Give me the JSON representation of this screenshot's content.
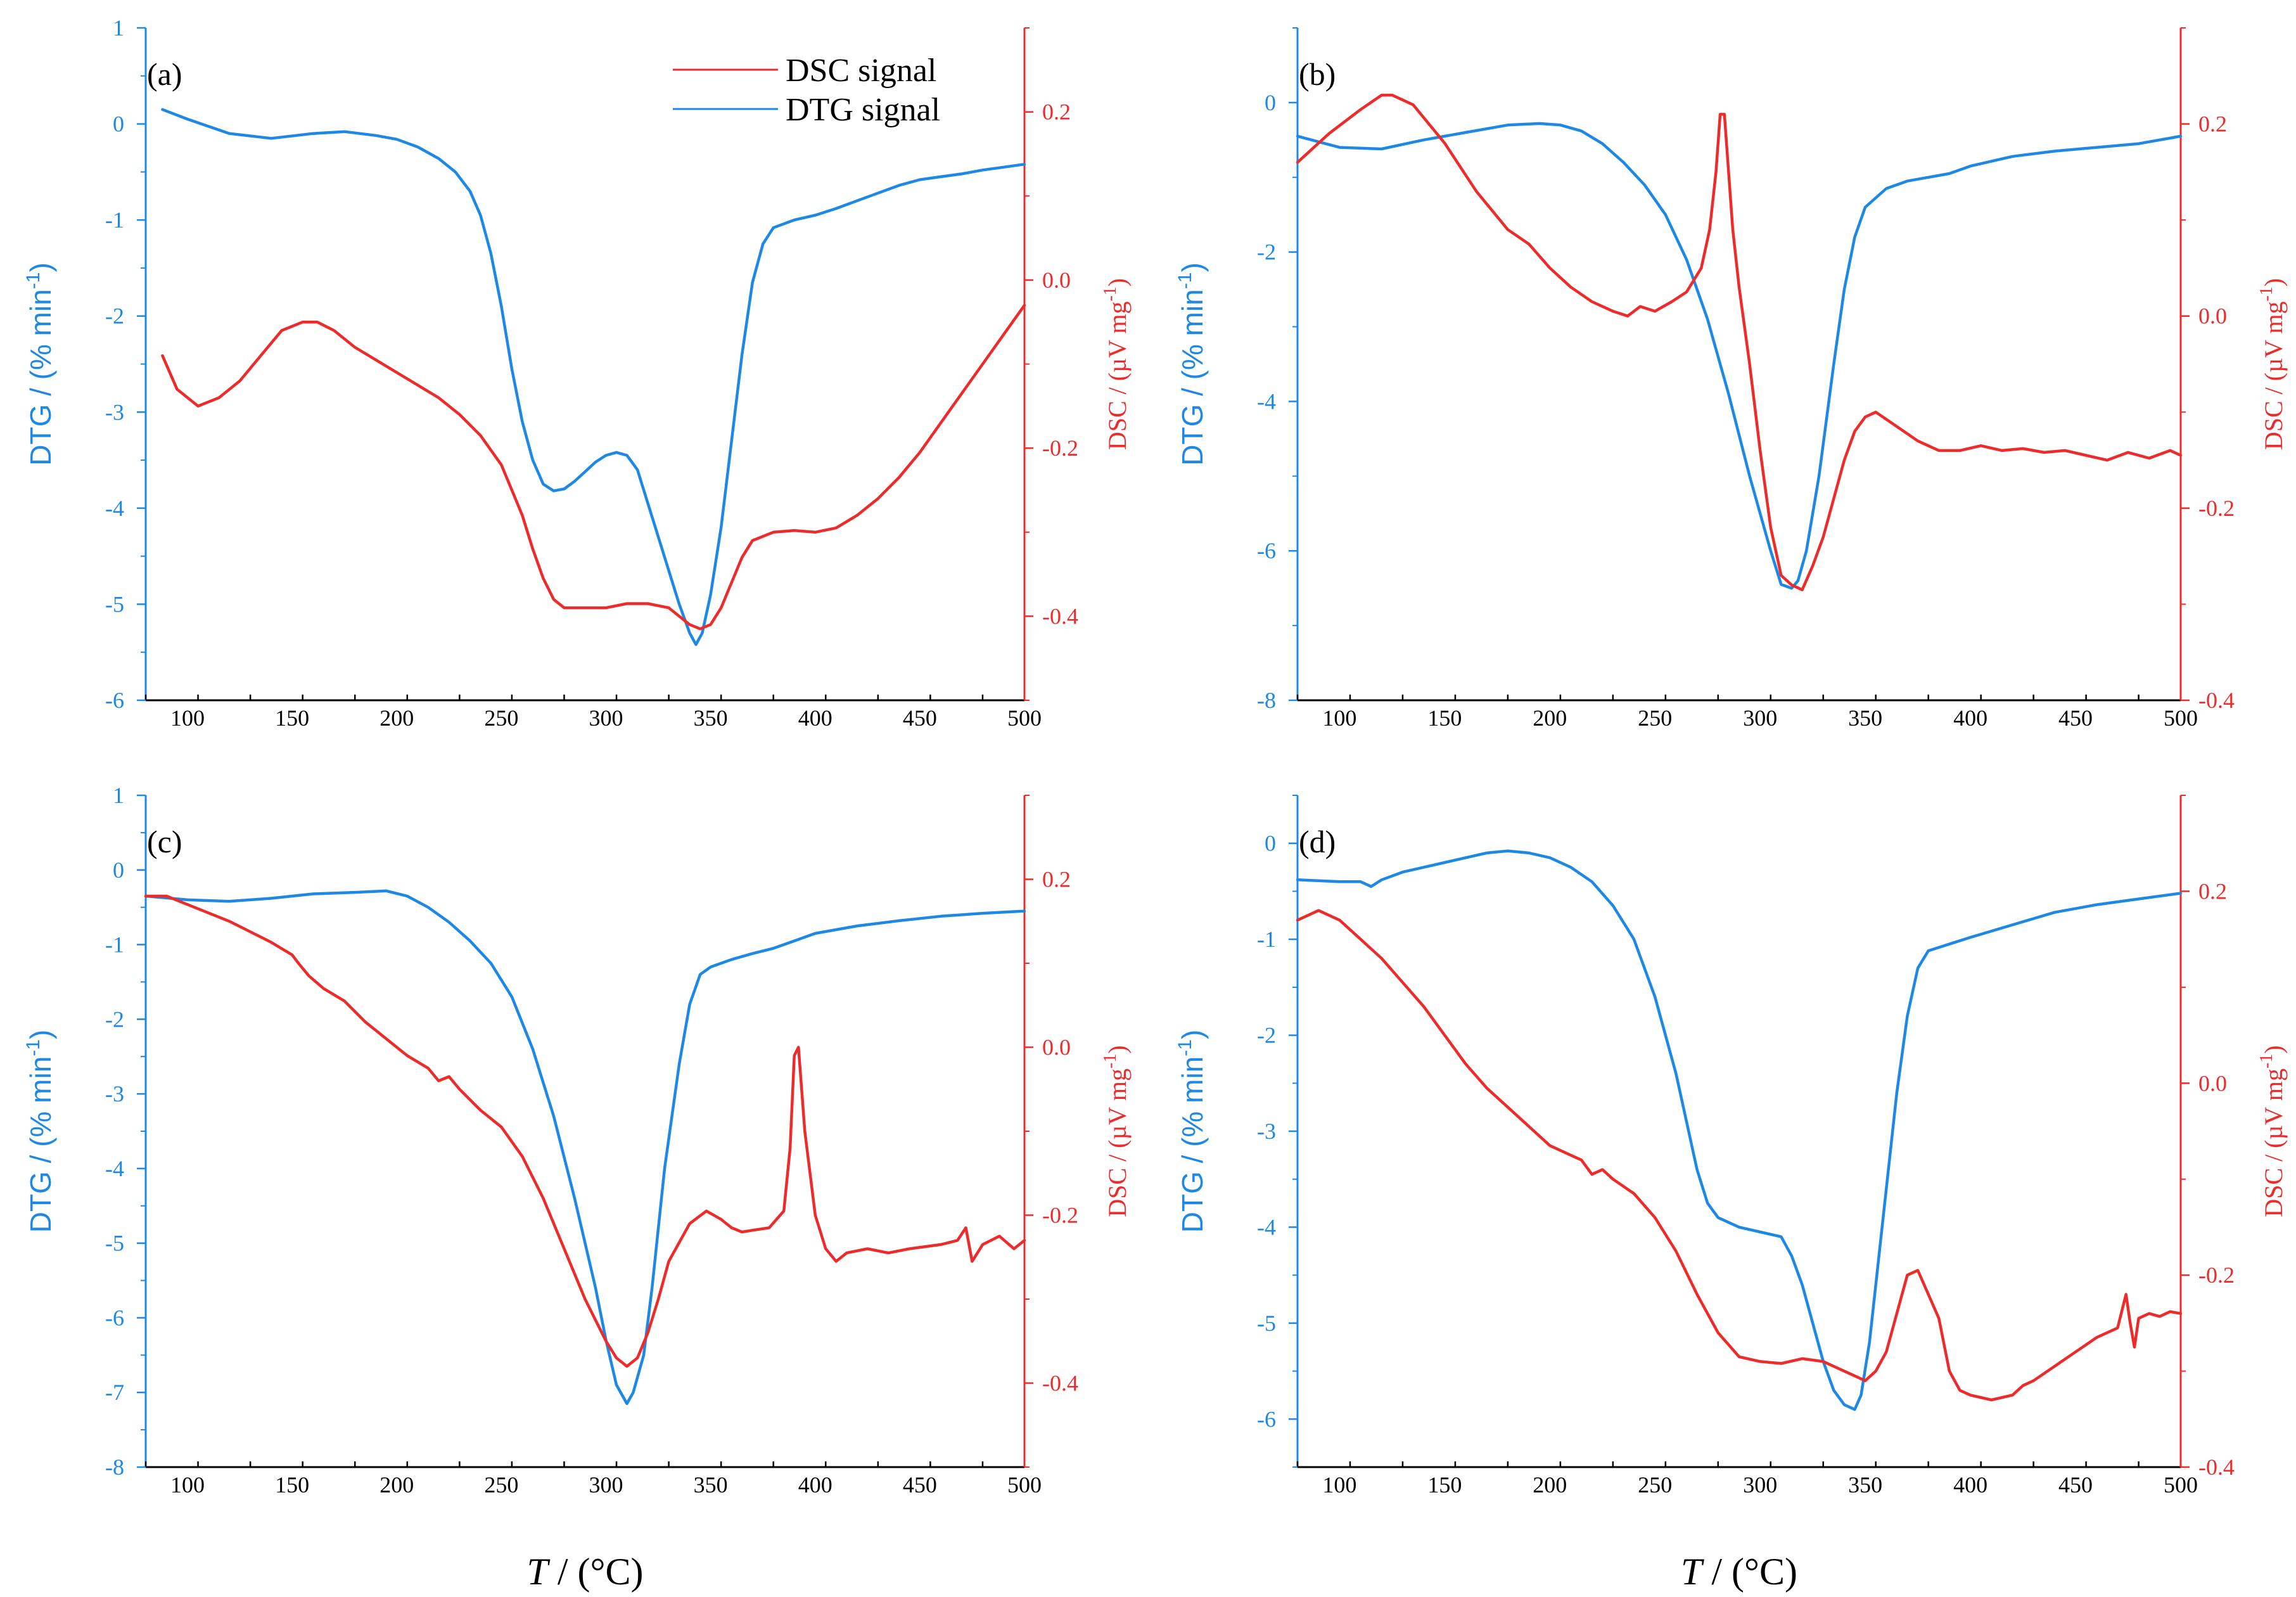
{
  "colors": {
    "dtg": "#1e88e5",
    "dsc": "#ee2b2b",
    "axis": "#000000"
  },
  "legend": {
    "dsc_label": "DSC signal",
    "dtg_label": "DTG signal"
  },
  "x_axis_title": {
    "italic": "T",
    "rest": " / (°C)"
  },
  "chart_data": [
    {
      "panel": "(a)",
      "type": "line",
      "xlim": [
        80,
        500
      ],
      "x_ticks": [
        100,
        150,
        200,
        250,
        300,
        350,
        400,
        450,
        500
      ],
      "y_left": {
        "label": "DTG / (% min",
        "sup": "-1",
        "close": ")",
        "lim": [
          -6,
          1
        ],
        "ticks": [
          1,
          0,
          -1,
          -2,
          -3,
          -4,
          -5,
          -6
        ]
      },
      "y_right": {
        "label": "DSC / (µV mg",
        "sup": "-1",
        "close": ")",
        "lim": [
          -0.5,
          0.3
        ],
        "ticks": [
          0.2,
          0.0,
          -0.2,
          -0.4
        ],
        "tick_labels": [
          "0.2",
          "0.0",
          "-0.2",
          "-0.4"
        ]
      },
      "series": [
        {
          "name": "DTG signal",
          "axis": "left",
          "x": [
            88,
            100,
            120,
            140,
            160,
            175,
            190,
            200,
            210,
            220,
            228,
            235,
            240,
            245,
            250,
            255,
            260,
            265,
            270,
            275,
            280,
            285,
            290,
            295,
            300,
            305,
            310,
            315,
            320,
            325,
            330,
            335,
            340,
            343,
            346,
            350,
            355,
            360,
            365,
            370,
            375,
            380,
            390,
            400,
            410,
            420,
            430,
            440,
            450,
            460,
            470,
            480,
            490,
            500
          ],
          "y": [
            0.15,
            0.05,
            -0.1,
            -0.15,
            -0.1,
            -0.08,
            -0.12,
            -0.16,
            -0.24,
            -0.36,
            -0.5,
            -0.7,
            -0.95,
            -1.35,
            -1.9,
            -2.55,
            -3.1,
            -3.5,
            -3.75,
            -3.82,
            -3.8,
            -3.72,
            -3.62,
            -3.52,
            -3.45,
            -3.42,
            -3.45,
            -3.6,
            -3.95,
            -4.3,
            -4.65,
            -5.0,
            -5.3,
            -5.42,
            -5.3,
            -4.9,
            -4.2,
            -3.3,
            -2.4,
            -1.65,
            -1.25,
            -1.08,
            -1.0,
            -0.95,
            -0.88,
            -0.8,
            -0.72,
            -0.64,
            -0.58,
            -0.55,
            -0.52,
            -0.48,
            -0.45,
            -0.42
          ]
        },
        {
          "name": "DSC signal",
          "axis": "right",
          "x": [
            88,
            95,
            105,
            115,
            125,
            135,
            145,
            155,
            162,
            170,
            180,
            190,
            200,
            210,
            220,
            230,
            240,
            250,
            255,
            260,
            265,
            270,
            275,
            280,
            290,
            300,
            310,
            320,
            330,
            340,
            345,
            350,
            355,
            360,
            365,
            370,
            380,
            390,
            400,
            410,
            420,
            430,
            440,
            450,
            460,
            470,
            480,
            490,
            500
          ],
          "y": [
            -0.09,
            -0.13,
            -0.15,
            -0.14,
            -0.12,
            -0.09,
            -0.06,
            -0.05,
            -0.05,
            -0.06,
            -0.08,
            -0.095,
            -0.11,
            -0.125,
            -0.14,
            -0.16,
            -0.185,
            -0.22,
            -0.25,
            -0.28,
            -0.32,
            -0.355,
            -0.38,
            -0.39,
            -0.39,
            -0.39,
            -0.385,
            -0.385,
            -0.39,
            -0.41,
            -0.415,
            -0.41,
            -0.39,
            -0.36,
            -0.33,
            -0.31,
            -0.3,
            -0.298,
            -0.3,
            -0.295,
            -0.28,
            -0.26,
            -0.235,
            -0.205,
            -0.17,
            -0.135,
            -0.1,
            -0.065,
            -0.03
          ]
        }
      ]
    },
    {
      "panel": "(b)",
      "type": "line",
      "xlim": [
        80,
        500
      ],
      "x_ticks": [
        100,
        150,
        200,
        250,
        300,
        350,
        400,
        450,
        500
      ],
      "y_left": {
        "label": "DTG / (% min",
        "sup": "-1",
        "close": ")",
        "lim": [
          -8,
          1
        ],
        "ticks": [
          0,
          -2,
          -4,
          -6,
          -8
        ]
      },
      "y_right": {
        "label": "DSC / (µV mg",
        "sup": "-1",
        "close": ")",
        "lim": [
          -0.4,
          0.3
        ],
        "ticks": [
          0.2,
          0.0,
          -0.2,
          -0.4
        ],
        "tick_labels": [
          "0.2",
          "0.0",
          "-0.2",
          "-0.4"
        ]
      },
      "series": [
        {
          "name": "DTG signal",
          "axis": "left",
          "x": [
            80,
            100,
            120,
            140,
            160,
            180,
            195,
            205,
            215,
            225,
            235,
            245,
            255,
            265,
            275,
            285,
            295,
            305,
            310,
            315,
            318,
            322,
            328,
            335,
            340,
            345,
            350,
            360,
            370,
            380,
            390,
            400,
            420,
            440,
            460,
            480,
            500
          ],
          "y": [
            -0.45,
            -0.6,
            -0.62,
            -0.5,
            -0.4,
            -0.3,
            -0.28,
            -0.3,
            -0.38,
            -0.55,
            -0.8,
            -1.1,
            -1.5,
            -2.1,
            -2.9,
            -3.9,
            -5.0,
            -6.0,
            -6.45,
            -6.5,
            -6.4,
            -6.0,
            -5.0,
            -3.5,
            -2.5,
            -1.8,
            -1.4,
            -1.15,
            -1.05,
            -1.0,
            -0.95,
            -0.85,
            -0.72,
            -0.65,
            -0.6,
            -0.55,
            -0.45
          ]
        },
        {
          "name": "DSC signal",
          "axis": "right",
          "x": [
            80,
            95,
            110,
            120,
            125,
            135,
            150,
            165,
            180,
            190,
            200,
            210,
            220,
            230,
            237,
            243,
            250,
            258,
            265,
            272,
            276,
            279,
            281,
            283,
            285,
            287,
            290,
            295,
            300,
            305,
            310,
            315,
            320,
            325,
            330,
            335,
            340,
            345,
            350,
            355,
            365,
            375,
            385,
            395,
            405,
            415,
            425,
            435,
            445,
            455,
            465,
            475,
            485,
            495,
            500
          ],
          "y": [
            0.16,
            0.19,
            0.215,
            0.23,
            0.23,
            0.22,
            0.18,
            0.13,
            0.09,
            0.075,
            0.05,
            0.03,
            0.015,
            0.005,
            0.0,
            0.01,
            0.005,
            0.015,
            0.025,
            0.05,
            0.09,
            0.15,
            0.21,
            0.21,
            0.15,
            0.09,
            0.03,
            -0.05,
            -0.14,
            -0.22,
            -0.27,
            -0.28,
            -0.285,
            -0.26,
            -0.23,
            -0.19,
            -0.15,
            -0.12,
            -0.105,
            -0.1,
            -0.115,
            -0.13,
            -0.14,
            -0.14,
            -0.135,
            -0.14,
            -0.138,
            -0.142,
            -0.14,
            -0.145,
            -0.15,
            -0.142,
            -0.148,
            -0.14,
            -0.145
          ]
        }
      ]
    },
    {
      "panel": "(c)",
      "type": "line",
      "xlim": [
        80,
        500
      ],
      "x_ticks": [
        100,
        150,
        200,
        250,
        300,
        350,
        400,
        450,
        500
      ],
      "y_left": {
        "label": "DTG / (% min",
        "sup": "-1",
        "close": ")",
        "lim": [
          -8,
          1
        ],
        "ticks": [
          1,
          0,
          -1,
          -2,
          -3,
          -4,
          -5,
          -6,
          -7,
          -8
        ]
      },
      "y_right": {
        "label": "DSC / (µV mg",
        "sup": "-1",
        "close": ")",
        "lim": [
          -0.5,
          0.3
        ],
        "ticks": [
          0.2,
          0.0,
          -0.2,
          -0.4
        ],
        "tick_labels": [
          "0.2",
          "0.0",
          "-0.2",
          "-0.4"
        ]
      },
      "series": [
        {
          "name": "DTG signal",
          "axis": "left",
          "x": [
            80,
            100,
            120,
            140,
            160,
            180,
            195,
            205,
            215,
            225,
            235,
            245,
            255,
            265,
            275,
            285,
            295,
            300,
            305,
            310,
            313,
            318,
            322,
            328,
            335,
            340,
            345,
            350,
            360,
            370,
            380,
            390,
            400,
            420,
            440,
            460,
            480,
            500
          ],
          "y": [
            -0.35,
            -0.4,
            -0.42,
            -0.38,
            -0.32,
            -0.3,
            -0.28,
            -0.35,
            -0.5,
            -0.7,
            -0.95,
            -1.25,
            -1.7,
            -2.4,
            -3.3,
            -4.4,
            -5.6,
            -6.3,
            -6.9,
            -7.15,
            -7.0,
            -6.5,
            -5.6,
            -4.0,
            -2.6,
            -1.8,
            -1.4,
            -1.3,
            -1.2,
            -1.12,
            -1.05,
            -0.95,
            -0.85,
            -0.75,
            -0.68,
            -0.62,
            -0.58,
            -0.55
          ]
        },
        {
          "name": "DSC signal",
          "axis": "right",
          "x": [
            80,
            90,
            100,
            120,
            140,
            150,
            153,
            158,
            165,
            175,
            185,
            195,
            205,
            215,
            220,
            225,
            230,
            240,
            250,
            260,
            270,
            280,
            290,
            300,
            305,
            310,
            315,
            320,
            325,
            330,
            340,
            348,
            355,
            360,
            365,
            370,
            378,
            385,
            388,
            390,
            392,
            395,
            400,
            405,
            410,
            415,
            425,
            435,
            445,
            460,
            468,
            472,
            475,
            480,
            488,
            495,
            500
          ],
          "y": [
            0.18,
            0.18,
            0.17,
            0.15,
            0.125,
            0.11,
            0.1,
            0.085,
            0.07,
            0.055,
            0.03,
            0.01,
            -0.01,
            -0.025,
            -0.04,
            -0.035,
            -0.05,
            -0.075,
            -0.095,
            -0.13,
            -0.18,
            -0.24,
            -0.3,
            -0.35,
            -0.37,
            -0.38,
            -0.37,
            -0.34,
            -0.3,
            -0.255,
            -0.21,
            -0.195,
            -0.205,
            -0.215,
            -0.22,
            -0.218,
            -0.215,
            -0.195,
            -0.12,
            -0.01,
            0.0,
            -0.1,
            -0.2,
            -0.24,
            -0.255,
            -0.245,
            -0.24,
            -0.245,
            -0.24,
            -0.235,
            -0.23,
            -0.215,
            -0.255,
            -0.235,
            -0.225,
            -0.24,
            -0.23
          ]
        }
      ]
    },
    {
      "panel": "(d)",
      "type": "line",
      "xlim": [
        80,
        500
      ],
      "x_ticks": [
        100,
        150,
        200,
        250,
        300,
        350,
        400,
        450,
        500
      ],
      "y_left": {
        "label": "DTG / (% min",
        "sup": "-1",
        "close": ")",
        "lim": [
          -6.5,
          0.5
        ],
        "ticks": [
          0,
          -1,
          -2,
          -3,
          -4,
          -5,
          -6
        ]
      },
      "y_right": {
        "label": "DSC / (µV mg",
        "sup": "-1",
        "close": ")",
        "lim": [
          -0.4,
          0.3
        ],
        "ticks": [
          0.2,
          0.0,
          -0.2,
          -0.4
        ],
        "tick_labels": [
          "0.2",
          "0.0 ",
          "-0.2",
          "-0.4"
        ]
      },
      "series": [
        {
          "name": "DTG signal",
          "axis": "left",
          "x": [
            80,
            100,
            110,
            115,
            120,
            130,
            140,
            150,
            160,
            170,
            180,
            190,
            200,
            210,
            220,
            230,
            240,
            250,
            260,
            265,
            270,
            275,
            280,
            290,
            300,
            310,
            315,
            320,
            325,
            330,
            335,
            340,
            345,
            348,
            352,
            358,
            365,
            370,
            375,
            380,
            390,
            400,
            420,
            440,
            460,
            480,
            500
          ],
          "y": [
            -0.38,
            -0.4,
            -0.4,
            -0.45,
            -0.38,
            -0.3,
            -0.25,
            -0.2,
            -0.15,
            -0.1,
            -0.08,
            -0.1,
            -0.15,
            -0.25,
            -0.4,
            -0.65,
            -1.0,
            -1.6,
            -2.4,
            -2.9,
            -3.4,
            -3.75,
            -3.9,
            -4.0,
            -4.05,
            -4.1,
            -4.3,
            -4.6,
            -5.0,
            -5.4,
            -5.7,
            -5.85,
            -5.9,
            -5.75,
            -5.2,
            -4.0,
            -2.6,
            -1.8,
            -1.3,
            -1.12,
            -1.05,
            -0.98,
            -0.85,
            -0.72,
            -0.64,
            -0.58,
            -0.52
          ]
        },
        {
          "name": "DSC signal",
          "axis": "right",
          "x": [
            80,
            90,
            100,
            110,
            120,
            130,
            140,
            150,
            160,
            170,
            180,
            190,
            200,
            210,
            215,
            220,
            225,
            230,
            240,
            250,
            260,
            270,
            280,
            290,
            300,
            310,
            320,
            330,
            340,
            345,
            350,
            355,
            360,
            365,
            370,
            375,
            380,
            385,
            390,
            395,
            400,
            410,
            420,
            425,
            430,
            440,
            450,
            460,
            470,
            474,
            476,
            478,
            480,
            485,
            490,
            495,
            500
          ],
          "y": [
            0.17,
            0.18,
            0.17,
            0.15,
            0.13,
            0.105,
            0.08,
            0.05,
            0.02,
            -0.005,
            -0.025,
            -0.045,
            -0.065,
            -0.075,
            -0.08,
            -0.095,
            -0.09,
            -0.1,
            -0.115,
            -0.14,
            -0.175,
            -0.22,
            -0.26,
            -0.285,
            -0.29,
            -0.292,
            -0.287,
            -0.29,
            -0.3,
            -0.305,
            -0.31,
            -0.3,
            -0.28,
            -0.24,
            -0.2,
            -0.195,
            -0.22,
            -0.245,
            -0.3,
            -0.32,
            -0.325,
            -0.33,
            -0.325,
            -0.315,
            -0.31,
            -0.295,
            -0.28,
            -0.265,
            -0.255,
            -0.22,
            -0.25,
            -0.275,
            -0.245,
            -0.24,
            -0.243,
            -0.238,
            -0.24
          ]
        }
      ]
    }
  ]
}
